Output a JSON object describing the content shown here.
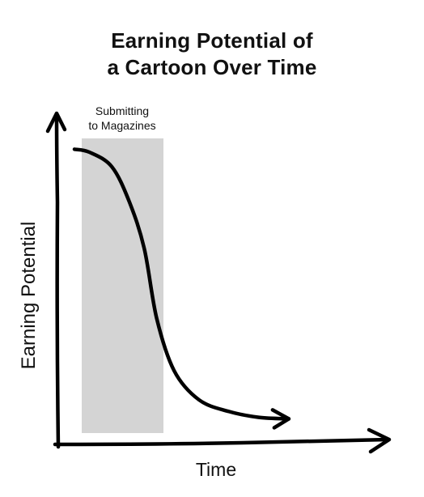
{
  "chart_data": {
    "type": "line",
    "title_lines": [
      "Earning Potential of",
      "a Cartoon Over Time"
    ],
    "xlabel": "Time",
    "ylabel": "Earning Potential",
    "shaded_region": {
      "label_lines": [
        "Submitting",
        "to Magazines"
      ],
      "color": "#d4d4d4"
    },
    "axes_style": "hand-drawn arrows, no ticks, no grid",
    "series": [
      {
        "values": [
          0.96,
          0.95,
          0.9,
          0.78,
          0.62,
          0.38,
          0.2,
          0.1,
          0.06,
          0.04,
          0.035
        ]
      }
    ],
    "x": [
      0.0,
      0.06,
      0.15,
      0.22,
      0.28,
      0.33,
      0.4,
      0.5,
      0.62,
      0.74,
      0.86
    ],
    "xlim": [
      0,
      1
    ],
    "ylim": [
      0,
      1
    ],
    "line_color": "#000000"
  }
}
